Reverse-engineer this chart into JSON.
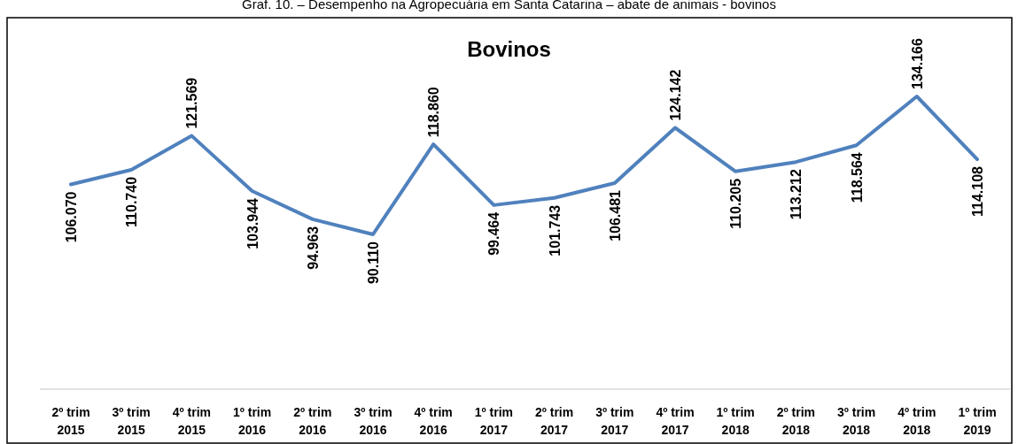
{
  "chart_data": {
    "type": "line",
    "title": "Graf. 10. – Desempenho na Agropecuária em Santa Catarina – abate de animais - bovinos",
    "subtitle": "Bovinos",
    "categories": [
      "2º trim 2015",
      "3º trim 2015",
      "4º trim 2015",
      "1º trim 2016",
      "2º trim 2016",
      "3º trim 2016",
      "4º trim 2016",
      "1º trim 2017",
      "2º trim 2017",
      "3º trim 2017",
      "4º trim 2017",
      "1º trim 2018",
      "2º trim 2018",
      "3º trim 2018",
      "4º trim 2018",
      "1º trim 2019"
    ],
    "series": [
      {
        "color": "#4f81bd",
        "values": [
          106070,
          110740,
          121569,
          103944,
          94963,
          90110,
          118860,
          99464,
          101743,
          106481,
          124142,
          110205,
          113212,
          118564,
          134166,
          114108
        ],
        "value_labels": [
          "106.070",
          "110.740",
          "121.569",
          "103.944",
          "94.963",
          "90.110",
          "118.860",
          "99.464",
          "101.743",
          "106.481",
          "124.142",
          "110.205",
          "113.212",
          "118.564",
          "134.166",
          "114.108"
        ]
      }
    ],
    "marker": "none",
    "line_style": "solid",
    "tick_labels": "x"
  }
}
